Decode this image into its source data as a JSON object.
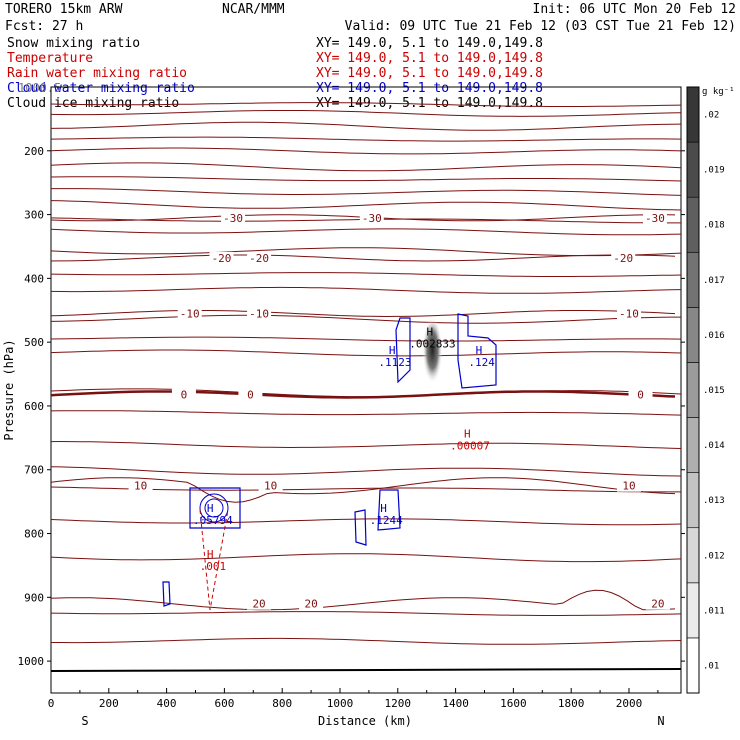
{
  "header": {
    "model": "TORERO  15km ARW",
    "center": "NCAR/MMM",
    "init": "Init: 06 UTC Mon 20 Feb 12",
    "fcst": "Fcst:   27 h",
    "valid": "Valid: 09 UTC Tue 21 Feb 12 (03 CST Tue 21 Feb 12)"
  },
  "fields": [
    {
      "name": "Snow mixing ratio",
      "xy": "XY= 149.0,  5.1 to 149.0,149.8",
      "color": "#000000"
    },
    {
      "name": "Temperature",
      "xy": "XY= 149.0,  5.1 to 149.0,149.8",
      "color": "#cc0000"
    },
    {
      "name": "Rain water mixing ratio",
      "xy": "XY= 149.0,  5.1 to 149.0,149.8",
      "color": "#cc0000"
    },
    {
      "name": "Cloud water mixing ratio",
      "xy": "XY= 149.0,  5.1 to 149.0,149.8",
      "color": "#0000cc"
    },
    {
      "name": "Cloud ice mixing ratio",
      "xy": "XY= 149.0,  5.1 to 149.0,149.8",
      "color": "#000000"
    }
  ],
  "header_overlay": "1000.5",
  "chart_data": {
    "type": "contour-cross-section",
    "xlabel": "Distance (km)",
    "ylabel": "Pressure (hPa)",
    "xlim": [
      0,
      2180
    ],
    "ylim": [
      1050,
      100
    ],
    "x_ticks": [
      0,
      200,
      400,
      600,
      800,
      1000,
      1200,
      1400,
      1600,
      1800,
      2000
    ],
    "y_ticks": [
      200,
      300,
      400,
      500,
      600,
      700,
      800,
      900,
      1000
    ],
    "left_end": "S",
    "right_end": "N",
    "colorbar": {
      "unit": "g kg⁻¹",
      "levels": [
        ".01",
        ".011",
        ".012",
        ".013",
        ".014",
        ".015",
        ".016",
        ".017",
        ".018",
        ".019",
        ".02"
      ]
    },
    "temperature_isotherms": [
      {
        "label": "-30",
        "p": 305,
        "label_x": [
          630,
          1110,
          2090
        ]
      },
      {
        "label": "-20",
        "p": 368,
        "label_x": [
          590,
          720,
          1980
        ]
      },
      {
        "label": "-10",
        "p": 455,
        "label_x": [
          480,
          720,
          2000
        ]
      },
      {
        "label": "0",
        "p": 582,
        "label_x": [
          460,
          690,
          2040
        ]
      },
      {
        "label": "10",
        "p": 725,
        "label_x": [
          310,
          760,
          2000
        ]
      },
      {
        "label": "20",
        "p": 910,
        "label_x": [
          720,
          900,
          2100
        ]
      }
    ],
    "cloud_water_maxima": [
      {
        "label": ".1123",
        "x": 1190,
        "p": 537
      },
      {
        "label": ".124",
        "x": 1490,
        "p": 537
      },
      {
        "label": ".1244",
        "x": 1160,
        "p": 785
      },
      {
        "label": ".05794",
        "x": 560,
        "p": 785
      }
    ],
    "snow_maxima": [
      {
        "label": ".002833",
        "x": 1320,
        "p": 508
      }
    ],
    "rain_maxima": [
      {
        "label": ".00007",
        "x": 1450,
        "p": 668
      },
      {
        "label": ".001",
        "x": 560,
        "p": 857
      }
    ],
    "snow_core": {
      "x": 1320,
      "p_top": 460,
      "p_bottom": 565
    }
  }
}
